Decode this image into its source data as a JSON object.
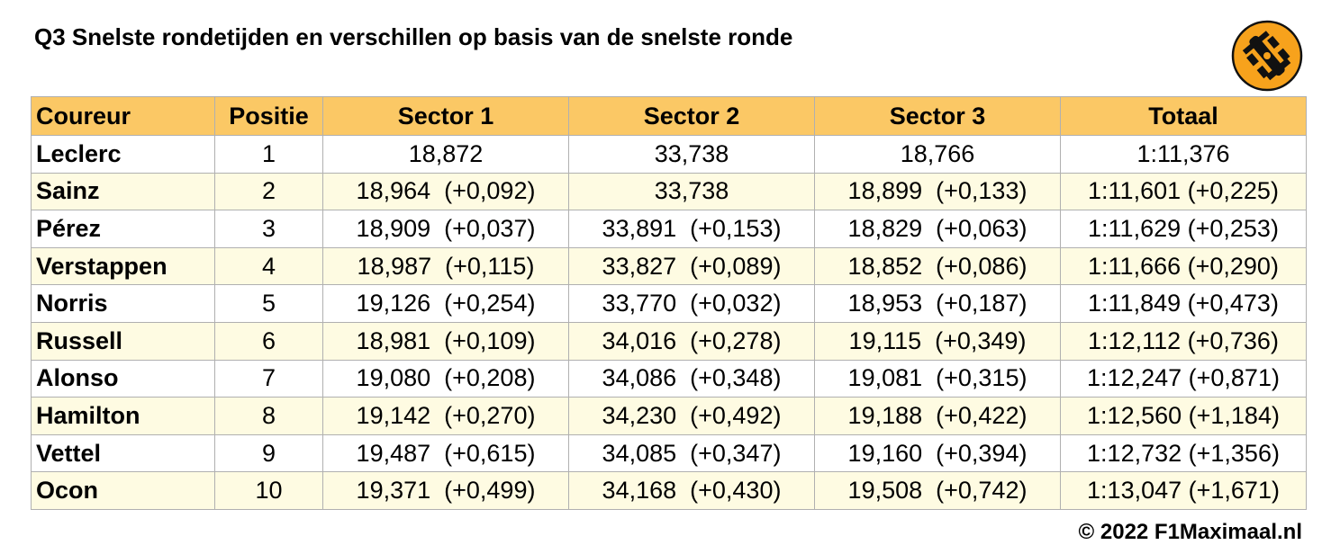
{
  "header": {
    "title": "Q3 Snelste rondetijden en verschillen op basis van de snelste ronde"
  },
  "table": {
    "columns": [
      "Coureur",
      "Positie",
      "Sector 1",
      "Sector 2",
      "Sector 3",
      "Totaal"
    ],
    "rows": [
      [
        "Leclerc",
        "1",
        "18,872",
        "33,738",
        "18,766",
        "1:11,376"
      ],
      [
        "Sainz",
        "2",
        "18,964  (+0,092)",
        "33,738",
        "18,899  (+0,133)",
        "1:11,601 (+0,225)"
      ],
      [
        "Pérez",
        "3",
        "18,909  (+0,037)",
        "33,891  (+0,153)",
        "18,829  (+0,063)",
        "1:11,629 (+0,253)"
      ],
      [
        "Verstappen",
        "4",
        "18,987  (+0,115)",
        "33,827  (+0,089)",
        "18,852  (+0,086)",
        "1:11,666 (+0,290)"
      ],
      [
        "Norris",
        "5",
        "19,126  (+0,254)",
        "33,770  (+0,032)",
        "18,953  (+0,187)",
        "1:11,849 (+0,473)"
      ],
      [
        "Russell",
        "6",
        "18,981  (+0,109)",
        "34,016  (+0,278)",
        "19,115  (+0,349)",
        "1:12,112 (+0,736)"
      ],
      [
        "Alonso",
        "7",
        "19,080  (+0,208)",
        "34,086  (+0,348)",
        "19,081  (+0,315)",
        "1:12,247 (+0,871)"
      ],
      [
        "Hamilton",
        "8",
        "19,142  (+0,270)",
        "34,230  (+0,492)",
        "19,188  (+0,422)",
        "1:12,560 (+1,184)"
      ],
      [
        "Vettel",
        "9",
        "19,487  (+0,615)",
        "34,085  (+0,347)",
        "19,160  (+0,394)",
        "1:12,732 (+1,356)"
      ],
      [
        "Ocon",
        "10",
        "19,371  (+0,499)",
        "34,168  (+0,430)",
        "19,508  (+0,742)",
        "1:13,047 (+1,671)"
      ]
    ]
  },
  "footer": {
    "copyright": "© 2022 F1Maximaal.nl"
  }
}
